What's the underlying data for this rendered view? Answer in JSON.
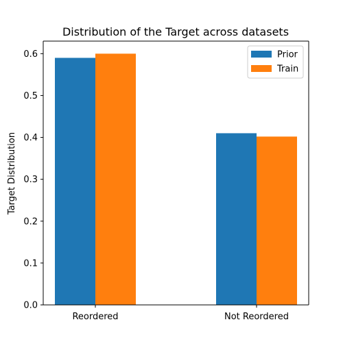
{
  "chart_data": {
    "type": "bar",
    "title": "Distribution of the Target across datasets",
    "xlabel": "",
    "ylabel": "Target Distribution",
    "categories": [
      "Reordered",
      "Not Reordered"
    ],
    "series": [
      {
        "name": "Prior",
        "values": [
          0.59,
          0.41
        ],
        "color": "#1f77b4"
      },
      {
        "name": "Train",
        "values": [
          0.6,
          0.402
        ],
        "color": "#ff7f0e"
      }
    ],
    "ylim": [
      0,
      0.63
    ],
    "yticks": [
      0.0,
      0.1,
      0.2,
      0.3,
      0.4,
      0.5,
      0.6
    ],
    "ytick_labels": [
      "0.0",
      "0.1",
      "0.2",
      "0.3",
      "0.4",
      "0.5",
      "0.6"
    ],
    "legend_position": "top-right",
    "grid": false
  }
}
